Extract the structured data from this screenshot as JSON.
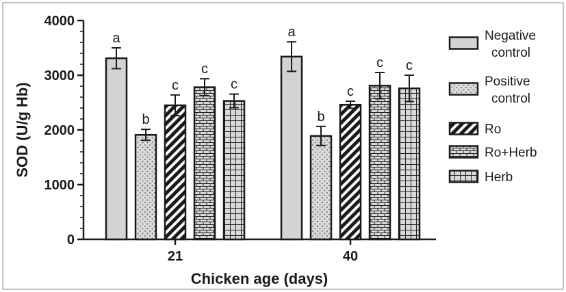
{
  "chart_data": {
    "type": "bar",
    "xlabel": "Chicken age (days)",
    "ylabel": "SOD (U/g Hb)",
    "ylim": [
      0,
      4000
    ],
    "yticks": [
      0,
      1000,
      2000,
      3000,
      4000
    ],
    "categories": [
      "21",
      "40"
    ],
    "grid": false,
    "legend_position": "right",
    "series": [
      {
        "name": "Negative control",
        "pattern": "solid-gray",
        "color": "#d3d3d3",
        "values": [
          3310,
          3340
        ],
        "errors": [
          190,
          270
        ],
        "labels": [
          "a",
          "a"
        ]
      },
      {
        "name": "Positive control",
        "pattern": "dots",
        "color": "#d3d3d3",
        "values": [
          1910,
          1890
        ],
        "errors": [
          100,
          175
        ],
        "labels": [
          "b",
          "b"
        ]
      },
      {
        "name": "Ro",
        "pattern": "diagonal-stripes",
        "color": "#1a1a1a",
        "values": [
          2450,
          2460
        ],
        "errors": [
          190,
          65
        ],
        "labels": [
          "c",
          "c"
        ]
      },
      {
        "name": "Ro+Herb",
        "pattern": "bricks",
        "color": "#d3d3d3",
        "values": [
          2780,
          2810
        ],
        "errors": [
          155,
          240
        ],
        "labels": [
          "c",
          "c"
        ]
      },
      {
        "name": "Herb",
        "pattern": "grid",
        "color": "#d3d3d3",
        "values": [
          2530,
          2760
        ],
        "errors": [
          125,
          240
        ],
        "labels": [
          "c",
          "c"
        ]
      }
    ]
  }
}
